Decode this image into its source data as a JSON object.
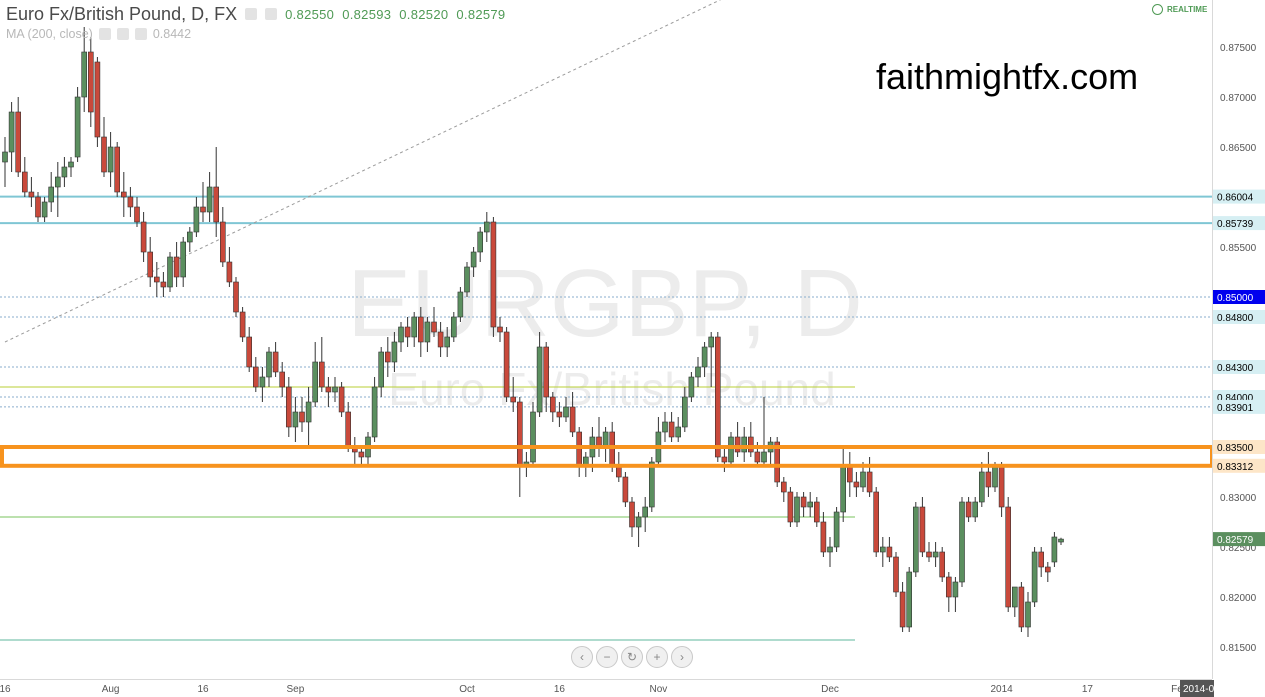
{
  "header": {
    "symbol_line": "Euro Fx/British Pound, D, FX",
    "open": "0.82550",
    "high": "0.82593",
    "low": "0.82520",
    "close": "0.82579",
    "ma_label": "MA (200, close)",
    "ma_value": "0.8442",
    "realtime": "REALTIME"
  },
  "watermark_site": "faithmightfx.com",
  "background_title": "EURGBP, D",
  "background_subtitle": "Euro Fx/British Pound",
  "colors": {
    "bull": "#5b8f5f",
    "bear": "#c9493b",
    "cyan_line": "#7fc6d4",
    "blue_label": "#0000ee",
    "orange_box": "#f7931e",
    "green_line": "#79c35e",
    "lime_line": "#b8cf35",
    "teal_line": "#5fb79d",
    "trend_dash": "#9b9b9b",
    "last_price": "#5b8f5f"
  },
  "nav_buttons": [
    "chevron-left-icon",
    "zoom-out-icon",
    "reset-icon",
    "zoom-in-icon",
    "chevron-right-icon"
  ],
  "chart_data": {
    "type": "candlestick",
    "title": "Euro Fx/British Pound, D, FX",
    "ylim": [
      0.8125,
      0.8775
    ],
    "y_ticks": [
      "0.87500",
      "0.87000",
      "0.86500",
      "0.85500",
      "0.84000",
      "0.83000",
      "0.82500",
      "0.82000",
      "0.81500"
    ],
    "x_ticks": [
      {
        "label": "16",
        "bar": 0
      },
      {
        "label": "Aug",
        "bar": 16
      },
      {
        "label": "16",
        "bar": 30
      },
      {
        "label": "Sep",
        "bar": 44
      },
      {
        "label": "Oct",
        "bar": 70
      },
      {
        "label": "16",
        "bar": 84
      },
      {
        "label": "Nov",
        "bar": 99
      },
      {
        "label": "Dec",
        "bar": 125
      },
      {
        "label": "2014",
        "bar": 151
      },
      {
        "label": "17",
        "bar": 164
      },
      {
        "label": "Feb",
        "bar": 178
      },
      {
        "label": "2014-0",
        "bar": 197
      }
    ],
    "horizontal_levels": [
      {
        "price": 0.86004,
        "label": "0.86004",
        "kind": "cyan"
      },
      {
        "price": 0.85739,
        "label": "0.85739",
        "kind": "cyan"
      },
      {
        "price": 0.85,
        "label": "0.85000",
        "kind": "blue"
      },
      {
        "price": 0.848,
        "label": "0.84800",
        "kind": "dotted"
      },
      {
        "price": 0.843,
        "label": "0.84300",
        "kind": "dotted"
      },
      {
        "price": 0.84,
        "label": "0.84000",
        "kind": "dotted"
      },
      {
        "price": 0.83901,
        "label": "0.83901",
        "kind": "dotted"
      },
      {
        "price": 0.835,
        "label": "0.83500",
        "kind": "orange"
      },
      {
        "price": 0.83312,
        "label": "0.83312",
        "kind": "orange"
      }
    ],
    "partial_lines": [
      {
        "price": 0.828,
        "kind": "green"
      },
      {
        "price": 0.841,
        "kind": "lime"
      },
      {
        "price": 0.8157,
        "kind": "teal"
      }
    ],
    "trendline": {
      "from": {
        "bar": 0,
        "price": 0.8455
      },
      "to": {
        "bar": 140,
        "price": 0.8897
      }
    },
    "last_price": {
      "price": 0.82579,
      "label": "0.82579"
    },
    "series": [
      {
        "o": 0.8635,
        "h": 0.866,
        "l": 0.861,
        "c": 0.8645
      },
      {
        "o": 0.8645,
        "h": 0.8695,
        "l": 0.8625,
        "c": 0.8685
      },
      {
        "o": 0.8685,
        "h": 0.87,
        "l": 0.862,
        "c": 0.8625
      },
      {
        "o": 0.8625,
        "h": 0.864,
        "l": 0.86,
        "c": 0.8605
      },
      {
        "o": 0.8605,
        "h": 0.862,
        "l": 0.859,
        "c": 0.86
      },
      {
        "o": 0.86,
        "h": 0.8605,
        "l": 0.8575,
        "c": 0.858
      },
      {
        "o": 0.858,
        "h": 0.86,
        "l": 0.8575,
        "c": 0.8595
      },
      {
        "o": 0.8595,
        "h": 0.8625,
        "l": 0.8585,
        "c": 0.861
      },
      {
        "o": 0.861,
        "h": 0.8635,
        "l": 0.858,
        "c": 0.862
      },
      {
        "o": 0.862,
        "h": 0.864,
        "l": 0.861,
        "c": 0.863
      },
      {
        "o": 0.863,
        "h": 0.864,
        "l": 0.862,
        "c": 0.8635
      },
      {
        "o": 0.864,
        "h": 0.871,
        "l": 0.8635,
        "c": 0.87
      },
      {
        "o": 0.87,
        "h": 0.877,
        "l": 0.8685,
        "c": 0.8745
      },
      {
        "o": 0.8745,
        "h": 0.876,
        "l": 0.867,
        "c": 0.8685
      },
      {
        "o": 0.8735,
        "h": 0.874,
        "l": 0.865,
        "c": 0.866
      },
      {
        "o": 0.866,
        "h": 0.868,
        "l": 0.862,
        "c": 0.8625
      },
      {
        "o": 0.8625,
        "h": 0.8665,
        "l": 0.861,
        "c": 0.865
      },
      {
        "o": 0.865,
        "h": 0.8655,
        "l": 0.86,
        "c": 0.8605
      },
      {
        "o": 0.8605,
        "h": 0.8625,
        "l": 0.858,
        "c": 0.86
      },
      {
        "o": 0.86,
        "h": 0.861,
        "l": 0.858,
        "c": 0.859
      },
      {
        "o": 0.859,
        "h": 0.86,
        "l": 0.857,
        "c": 0.8575
      },
      {
        "o": 0.8575,
        "h": 0.8585,
        "l": 0.8535,
        "c": 0.8545
      },
      {
        "o": 0.8545,
        "h": 0.856,
        "l": 0.851,
        "c": 0.852
      },
      {
        "o": 0.852,
        "h": 0.8535,
        "l": 0.85,
        "c": 0.8515
      },
      {
        "o": 0.8515,
        "h": 0.8525,
        "l": 0.85,
        "c": 0.851
      },
      {
        "o": 0.851,
        "h": 0.8545,
        "l": 0.8505,
        "c": 0.854
      },
      {
        "o": 0.854,
        "h": 0.8555,
        "l": 0.851,
        "c": 0.852
      },
      {
        "o": 0.852,
        "h": 0.856,
        "l": 0.851,
        "c": 0.8555
      },
      {
        "o": 0.8555,
        "h": 0.857,
        "l": 0.8545,
        "c": 0.8565
      },
      {
        "o": 0.8565,
        "h": 0.86,
        "l": 0.856,
        "c": 0.859
      },
      {
        "o": 0.859,
        "h": 0.8615,
        "l": 0.8575,
        "c": 0.8585
      },
      {
        "o": 0.8585,
        "h": 0.8625,
        "l": 0.8575,
        "c": 0.861
      },
      {
        "o": 0.861,
        "h": 0.865,
        "l": 0.856,
        "c": 0.8575
      },
      {
        "o": 0.8575,
        "h": 0.859,
        "l": 0.853,
        "c": 0.8535
      },
      {
        "o": 0.8535,
        "h": 0.855,
        "l": 0.851,
        "c": 0.8515
      },
      {
        "o": 0.8515,
        "h": 0.852,
        "l": 0.848,
        "c": 0.8485
      },
      {
        "o": 0.8485,
        "h": 0.849,
        "l": 0.8455,
        "c": 0.846
      },
      {
        "o": 0.846,
        "h": 0.847,
        "l": 0.8425,
        "c": 0.843
      },
      {
        "o": 0.843,
        "h": 0.844,
        "l": 0.8405,
        "c": 0.841
      },
      {
        "o": 0.841,
        "h": 0.843,
        "l": 0.8395,
        "c": 0.842
      },
      {
        "o": 0.842,
        "h": 0.845,
        "l": 0.841,
        "c": 0.8445
      },
      {
        "o": 0.8445,
        "h": 0.8455,
        "l": 0.842,
        "c": 0.8425
      },
      {
        "o": 0.8425,
        "h": 0.8435,
        "l": 0.84,
        "c": 0.841
      },
      {
        "o": 0.841,
        "h": 0.842,
        "l": 0.836,
        "c": 0.837
      },
      {
        "o": 0.837,
        "h": 0.84,
        "l": 0.8355,
        "c": 0.8385
      },
      {
        "o": 0.8385,
        "h": 0.84,
        "l": 0.8365,
        "c": 0.8375
      },
      {
        "o": 0.8375,
        "h": 0.841,
        "l": 0.835,
        "c": 0.8395
      },
      {
        "o": 0.8395,
        "h": 0.8455,
        "l": 0.839,
        "c": 0.8435
      },
      {
        "o": 0.8435,
        "h": 0.846,
        "l": 0.8405,
        "c": 0.841
      },
      {
        "o": 0.841,
        "h": 0.842,
        "l": 0.839,
        "c": 0.8405
      },
      {
        "o": 0.8405,
        "h": 0.842,
        "l": 0.8395,
        "c": 0.841
      },
      {
        "o": 0.841,
        "h": 0.8415,
        "l": 0.838,
        "c": 0.8385
      },
      {
        "o": 0.8385,
        "h": 0.8395,
        "l": 0.8345,
        "c": 0.835
      },
      {
        "o": 0.835,
        "h": 0.836,
        "l": 0.833,
        "c": 0.8345
      },
      {
        "o": 0.8345,
        "h": 0.835,
        "l": 0.833,
        "c": 0.834
      },
      {
        "o": 0.834,
        "h": 0.8365,
        "l": 0.833,
        "c": 0.836
      },
      {
        "o": 0.836,
        "h": 0.842,
        "l": 0.8355,
        "c": 0.841
      },
      {
        "o": 0.841,
        "h": 0.845,
        "l": 0.84,
        "c": 0.8445
      },
      {
        "o": 0.8445,
        "h": 0.846,
        "l": 0.842,
        "c": 0.8435
      },
      {
        "o": 0.8435,
        "h": 0.8465,
        "l": 0.8425,
        "c": 0.8455
      },
      {
        "o": 0.8455,
        "h": 0.8475,
        "l": 0.8445,
        "c": 0.847
      },
      {
        "o": 0.847,
        "h": 0.848,
        "l": 0.845,
        "c": 0.846
      },
      {
        "o": 0.846,
        "h": 0.8485,
        "l": 0.845,
        "c": 0.848
      },
      {
        "o": 0.848,
        "h": 0.849,
        "l": 0.844,
        "c": 0.8455
      },
      {
        "o": 0.8455,
        "h": 0.848,
        "l": 0.8445,
        "c": 0.8475
      },
      {
        "o": 0.8475,
        "h": 0.849,
        "l": 0.846,
        "c": 0.8465
      },
      {
        "o": 0.8465,
        "h": 0.8475,
        "l": 0.844,
        "c": 0.845
      },
      {
        "o": 0.845,
        "h": 0.847,
        "l": 0.844,
        "c": 0.846
      },
      {
        "o": 0.846,
        "h": 0.8485,
        "l": 0.8455,
        "c": 0.848
      },
      {
        "o": 0.848,
        "h": 0.851,
        "l": 0.8475,
        "c": 0.8505
      },
      {
        "o": 0.8505,
        "h": 0.8535,
        "l": 0.85,
        "c": 0.853
      },
      {
        "o": 0.853,
        "h": 0.855,
        "l": 0.852,
        "c": 0.8545
      },
      {
        "o": 0.8545,
        "h": 0.857,
        "l": 0.8535,
        "c": 0.8565
      },
      {
        "o": 0.8565,
        "h": 0.8585,
        "l": 0.8555,
        "c": 0.8575
      },
      {
        "o": 0.8575,
        "h": 0.858,
        "l": 0.846,
        "c": 0.847
      },
      {
        "o": 0.847,
        "h": 0.848,
        "l": 0.8455,
        "c": 0.8465
      },
      {
        "o": 0.8465,
        "h": 0.847,
        "l": 0.8395,
        "c": 0.84
      },
      {
        "o": 0.84,
        "h": 0.842,
        "l": 0.8385,
        "c": 0.8395
      },
      {
        "o": 0.8395,
        "h": 0.84,
        "l": 0.83,
        "c": 0.833
      },
      {
        "o": 0.833,
        "h": 0.8345,
        "l": 0.832,
        "c": 0.8335
      },
      {
        "o": 0.8335,
        "h": 0.8395,
        "l": 0.833,
        "c": 0.8385
      },
      {
        "o": 0.8385,
        "h": 0.8465,
        "l": 0.838,
        "c": 0.845
      },
      {
        "o": 0.845,
        "h": 0.8455,
        "l": 0.8385,
        "c": 0.84
      },
      {
        "o": 0.84,
        "h": 0.8405,
        "l": 0.8375,
        "c": 0.8385
      },
      {
        "o": 0.8385,
        "h": 0.8395,
        "l": 0.837,
        "c": 0.838
      },
      {
        "o": 0.838,
        "h": 0.84,
        "l": 0.8375,
        "c": 0.839
      },
      {
        "o": 0.839,
        "h": 0.8405,
        "l": 0.836,
        "c": 0.8365
      },
      {
        "o": 0.8365,
        "h": 0.837,
        "l": 0.832,
        "c": 0.833
      },
      {
        "o": 0.833,
        "h": 0.8345,
        "l": 0.832,
        "c": 0.834
      },
      {
        "o": 0.834,
        "h": 0.837,
        "l": 0.8325,
        "c": 0.836
      },
      {
        "o": 0.836,
        "h": 0.838,
        "l": 0.834,
        "c": 0.835
      },
      {
        "o": 0.835,
        "h": 0.837,
        "l": 0.8335,
        "c": 0.8365
      },
      {
        "o": 0.8365,
        "h": 0.8375,
        "l": 0.8325,
        "c": 0.833
      },
      {
        "o": 0.833,
        "h": 0.8345,
        "l": 0.8315,
        "c": 0.832
      },
      {
        "o": 0.832,
        "h": 0.8325,
        "l": 0.829,
        "c": 0.8295
      },
      {
        "o": 0.8295,
        "h": 0.83,
        "l": 0.826,
        "c": 0.827
      },
      {
        "o": 0.827,
        "h": 0.8285,
        "l": 0.825,
        "c": 0.828
      },
      {
        "o": 0.828,
        "h": 0.83,
        "l": 0.8265,
        "c": 0.829
      },
      {
        "o": 0.829,
        "h": 0.834,
        "l": 0.8285,
        "c": 0.8335
      },
      {
        "o": 0.8335,
        "h": 0.838,
        "l": 0.833,
        "c": 0.8365
      },
      {
        "o": 0.8365,
        "h": 0.8385,
        "l": 0.8355,
        "c": 0.8375
      },
      {
        "o": 0.8375,
        "h": 0.8385,
        "l": 0.8355,
        "c": 0.836
      },
      {
        "o": 0.836,
        "h": 0.838,
        "l": 0.8355,
        "c": 0.837
      },
      {
        "o": 0.837,
        "h": 0.841,
        "l": 0.8365,
        "c": 0.84
      },
      {
        "o": 0.84,
        "h": 0.8425,
        "l": 0.8395,
        "c": 0.842
      },
      {
        "o": 0.842,
        "h": 0.844,
        "l": 0.841,
        "c": 0.843
      },
      {
        "o": 0.843,
        "h": 0.8455,
        "l": 0.842,
        "c": 0.845
      },
      {
        "o": 0.845,
        "h": 0.8465,
        "l": 0.841,
        "c": 0.846
      },
      {
        "o": 0.846,
        "h": 0.8465,
        "l": 0.8335,
        "c": 0.834
      },
      {
        "o": 0.834,
        "h": 0.835,
        "l": 0.8325,
        "c": 0.8335
      },
      {
        "o": 0.8335,
        "h": 0.8365,
        "l": 0.833,
        "c": 0.836
      },
      {
        "o": 0.836,
        "h": 0.8375,
        "l": 0.834,
        "c": 0.8345
      },
      {
        "o": 0.8345,
        "h": 0.837,
        "l": 0.8335,
        "c": 0.836
      },
      {
        "o": 0.836,
        "h": 0.8375,
        "l": 0.834,
        "c": 0.8345
      },
      {
        "o": 0.8345,
        "h": 0.8355,
        "l": 0.833,
        "c": 0.8335
      },
      {
        "o": 0.8335,
        "h": 0.84,
        "l": 0.833,
        "c": 0.8345
      },
      {
        "o": 0.8345,
        "h": 0.836,
        "l": 0.833,
        "c": 0.8355
      },
      {
        "o": 0.8355,
        "h": 0.836,
        "l": 0.831,
        "c": 0.8315
      },
      {
        "o": 0.8315,
        "h": 0.832,
        "l": 0.8295,
        "c": 0.8305
      },
      {
        "o": 0.8305,
        "h": 0.831,
        "l": 0.827,
        "c": 0.8275
      },
      {
        "o": 0.8275,
        "h": 0.8305,
        "l": 0.827,
        "c": 0.83
      },
      {
        "o": 0.83,
        "h": 0.8305,
        "l": 0.828,
        "c": 0.829
      },
      {
        "o": 0.829,
        "h": 0.8305,
        "l": 0.828,
        "c": 0.8295
      },
      {
        "o": 0.8295,
        "h": 0.83,
        "l": 0.827,
        "c": 0.8275
      },
      {
        "o": 0.8275,
        "h": 0.8285,
        "l": 0.824,
        "c": 0.8245
      },
      {
        "o": 0.8245,
        "h": 0.826,
        "l": 0.823,
        "c": 0.825
      },
      {
        "o": 0.825,
        "h": 0.829,
        "l": 0.8245,
        "c": 0.8285
      },
      {
        "o": 0.8285,
        "h": 0.835,
        "l": 0.8275,
        "c": 0.833
      },
      {
        "o": 0.833,
        "h": 0.8345,
        "l": 0.83,
        "c": 0.8315
      },
      {
        "o": 0.8315,
        "h": 0.8325,
        "l": 0.83,
        "c": 0.831
      },
      {
        "o": 0.831,
        "h": 0.8335,
        "l": 0.8305,
        "c": 0.8325
      },
      {
        "o": 0.8325,
        "h": 0.834,
        "l": 0.83,
        "c": 0.8305
      },
      {
        "o": 0.8305,
        "h": 0.831,
        "l": 0.824,
        "c": 0.8245
      },
      {
        "o": 0.8245,
        "h": 0.826,
        "l": 0.823,
        "c": 0.825
      },
      {
        "o": 0.825,
        "h": 0.826,
        "l": 0.8235,
        "c": 0.824
      },
      {
        "o": 0.824,
        "h": 0.8245,
        "l": 0.82,
        "c": 0.8205
      },
      {
        "o": 0.8205,
        "h": 0.8215,
        "l": 0.8165,
        "c": 0.817
      },
      {
        "o": 0.817,
        "h": 0.823,
        "l": 0.8165,
        "c": 0.8225
      },
      {
        "o": 0.8225,
        "h": 0.8295,
        "l": 0.822,
        "c": 0.829
      },
      {
        "o": 0.829,
        "h": 0.83,
        "l": 0.824,
        "c": 0.8245
      },
      {
        "o": 0.8245,
        "h": 0.8255,
        "l": 0.8235,
        "c": 0.824
      },
      {
        "o": 0.824,
        "h": 0.8255,
        "l": 0.823,
        "c": 0.8245
      },
      {
        "o": 0.8245,
        "h": 0.825,
        "l": 0.8215,
        "c": 0.822
      },
      {
        "o": 0.822,
        "h": 0.8225,
        "l": 0.8185,
        "c": 0.82
      },
      {
        "o": 0.82,
        "h": 0.822,
        "l": 0.8185,
        "c": 0.8215
      },
      {
        "o": 0.8215,
        "h": 0.83,
        "l": 0.821,
        "c": 0.8295
      },
      {
        "o": 0.8295,
        "h": 0.83,
        "l": 0.8275,
        "c": 0.828
      },
      {
        "o": 0.828,
        "h": 0.83,
        "l": 0.8275,
        "c": 0.8295
      },
      {
        "o": 0.8295,
        "h": 0.8335,
        "l": 0.829,
        "c": 0.8325
      },
      {
        "o": 0.8325,
        "h": 0.8345,
        "l": 0.83,
        "c": 0.831
      },
      {
        "o": 0.831,
        "h": 0.8335,
        "l": 0.8305,
        "c": 0.833
      },
      {
        "o": 0.833,
        "h": 0.8335,
        "l": 0.828,
        "c": 0.829
      },
      {
        "o": 0.829,
        "h": 0.83,
        "l": 0.8185,
        "c": 0.819
      },
      {
        "o": 0.819,
        "h": 0.821,
        "l": 0.818,
        "c": 0.821
      },
      {
        "o": 0.821,
        "h": 0.8215,
        "l": 0.8165,
        "c": 0.817
      },
      {
        "o": 0.817,
        "h": 0.8205,
        "l": 0.816,
        "c": 0.8195
      },
      {
        "o": 0.8195,
        "h": 0.825,
        "l": 0.819,
        "c": 0.8245
      },
      {
        "o": 0.8245,
        "h": 0.825,
        "l": 0.822,
        "c": 0.823
      },
      {
        "o": 0.823,
        "h": 0.8235,
        "l": 0.8215,
        "c": 0.8225
      },
      {
        "o": 0.8235,
        "h": 0.8265,
        "l": 0.823,
        "c": 0.826
      },
      {
        "o": 0.8255,
        "h": 0.82593,
        "l": 0.8252,
        "c": 0.82579
      }
    ]
  }
}
